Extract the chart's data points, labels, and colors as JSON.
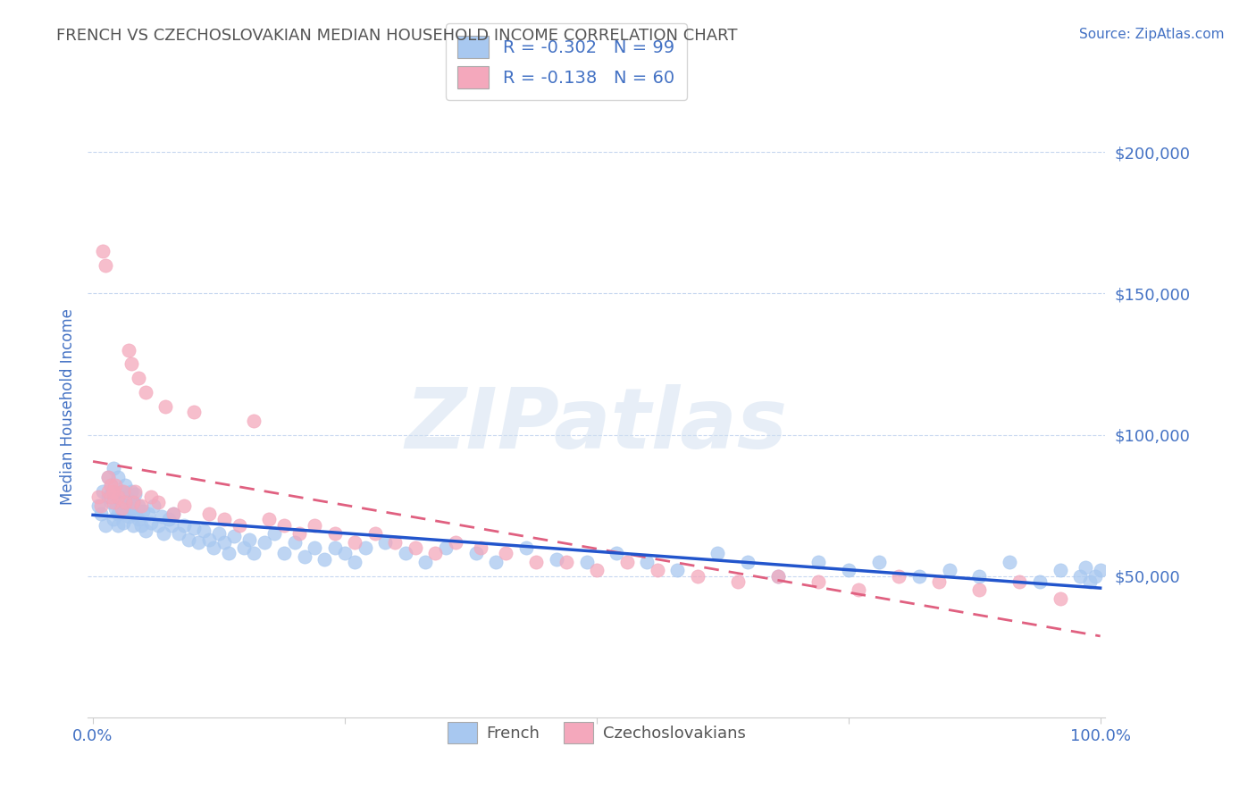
{
  "title": "FRENCH VS CZECHOSLOVAKIAN MEDIAN HOUSEHOLD INCOME CORRELATION CHART",
  "source": "Source: ZipAtlas.com",
  "ylabel": "Median Household Income",
  "watermark": "ZIPatlas",
  "french_R": -0.302,
  "french_N": 99,
  "czech_R": -0.138,
  "czech_N": 60,
  "french_color": "#a8c8f0",
  "czech_color": "#f4a8bc",
  "french_line_color": "#2255cc",
  "czech_line_color": "#e06080",
  "title_color": "#555555",
  "axis_label_color": "#4472c4",
  "tick_color": "#4472c4",
  "background_color": "#ffffff",
  "grid_color": "#c8d8f0",
  "ylim": [
    0,
    220000
  ],
  "xlim": [
    -0.005,
    1.005
  ],
  "yticks": [
    50000,
    100000,
    150000,
    200000
  ],
  "ytick_labels": [
    "$50,000",
    "$100,000",
    "$150,000",
    "$200,000"
  ],
  "french_x": [
    0.005,
    0.008,
    0.01,
    0.012,
    0.015,
    0.015,
    0.018,
    0.018,
    0.02,
    0.02,
    0.022,
    0.022,
    0.025,
    0.025,
    0.025,
    0.028,
    0.028,
    0.03,
    0.03,
    0.03,
    0.032,
    0.032,
    0.035,
    0.035,
    0.038,
    0.038,
    0.04,
    0.04,
    0.042,
    0.042,
    0.045,
    0.045,
    0.048,
    0.05,
    0.052,
    0.055,
    0.058,
    0.06,
    0.065,
    0.068,
    0.07,
    0.075,
    0.078,
    0.08,
    0.085,
    0.09,
    0.095,
    0.1,
    0.105,
    0.11,
    0.115,
    0.12,
    0.125,
    0.13,
    0.135,
    0.14,
    0.15,
    0.155,
    0.16,
    0.17,
    0.18,
    0.19,
    0.2,
    0.21,
    0.22,
    0.23,
    0.24,
    0.25,
    0.26,
    0.27,
    0.29,
    0.31,
    0.33,
    0.35,
    0.38,
    0.4,
    0.43,
    0.46,
    0.49,
    0.52,
    0.55,
    0.58,
    0.62,
    0.65,
    0.68,
    0.72,
    0.75,
    0.78,
    0.82,
    0.85,
    0.88,
    0.91,
    0.94,
    0.96,
    0.98,
    0.985,
    0.99,
    0.995,
    1.0
  ],
  "french_y": [
    75000,
    72000,
    80000,
    68000,
    78000,
    85000,
    76000,
    82000,
    70000,
    88000,
    74000,
    79000,
    72000,
    68000,
    85000,
    76000,
    80000,
    73000,
    69000,
    78000,
    75000,
    82000,
    71000,
    77000,
    74000,
    80000,
    68000,
    76000,
    72000,
    79000,
    70000,
    75000,
    68000,
    73000,
    66000,
    72000,
    69000,
    75000,
    68000,
    71000,
    65000,
    70000,
    68000,
    72000,
    65000,
    68000,
    63000,
    67000,
    62000,
    66000,
    63000,
    60000,
    65000,
    62000,
    58000,
    64000,
    60000,
    63000,
    58000,
    62000,
    65000,
    58000,
    62000,
    57000,
    60000,
    56000,
    60000,
    58000,
    55000,
    60000,
    62000,
    58000,
    55000,
    60000,
    58000,
    55000,
    60000,
    56000,
    55000,
    58000,
    55000,
    52000,
    58000,
    55000,
    50000,
    55000,
    52000,
    55000,
    50000,
    52000,
    50000,
    55000,
    48000,
    52000,
    50000,
    53000,
    48000,
    50000,
    52000
  ],
  "czech_x": [
    0.005,
    0.008,
    0.01,
    0.012,
    0.015,
    0.015,
    0.018,
    0.018,
    0.02,
    0.02,
    0.022,
    0.025,
    0.028,
    0.03,
    0.032,
    0.035,
    0.038,
    0.04,
    0.042,
    0.045,
    0.048,
    0.052,
    0.058,
    0.065,
    0.072,
    0.08,
    0.09,
    0.1,
    0.115,
    0.13,
    0.145,
    0.16,
    0.175,
    0.19,
    0.205,
    0.22,
    0.24,
    0.26,
    0.28,
    0.3,
    0.32,
    0.34,
    0.36,
    0.385,
    0.41,
    0.44,
    0.47,
    0.5,
    0.53,
    0.56,
    0.6,
    0.64,
    0.68,
    0.72,
    0.76,
    0.8,
    0.84,
    0.88,
    0.92,
    0.96
  ],
  "czech_y": [
    78000,
    75000,
    165000,
    160000,
    80000,
    85000,
    82000,
    78000,
    80000,
    76000,
    82000,
    78000,
    74000,
    80000,
    76000,
    130000,
    125000,
    76000,
    80000,
    120000,
    75000,
    115000,
    78000,
    76000,
    110000,
    72000,
    75000,
    108000,
    72000,
    70000,
    68000,
    105000,
    70000,
    68000,
    65000,
    68000,
    65000,
    62000,
    65000,
    62000,
    60000,
    58000,
    62000,
    60000,
    58000,
    55000,
    55000,
    52000,
    55000,
    52000,
    50000,
    48000,
    50000,
    48000,
    45000,
    50000,
    48000,
    45000,
    48000,
    42000
  ]
}
